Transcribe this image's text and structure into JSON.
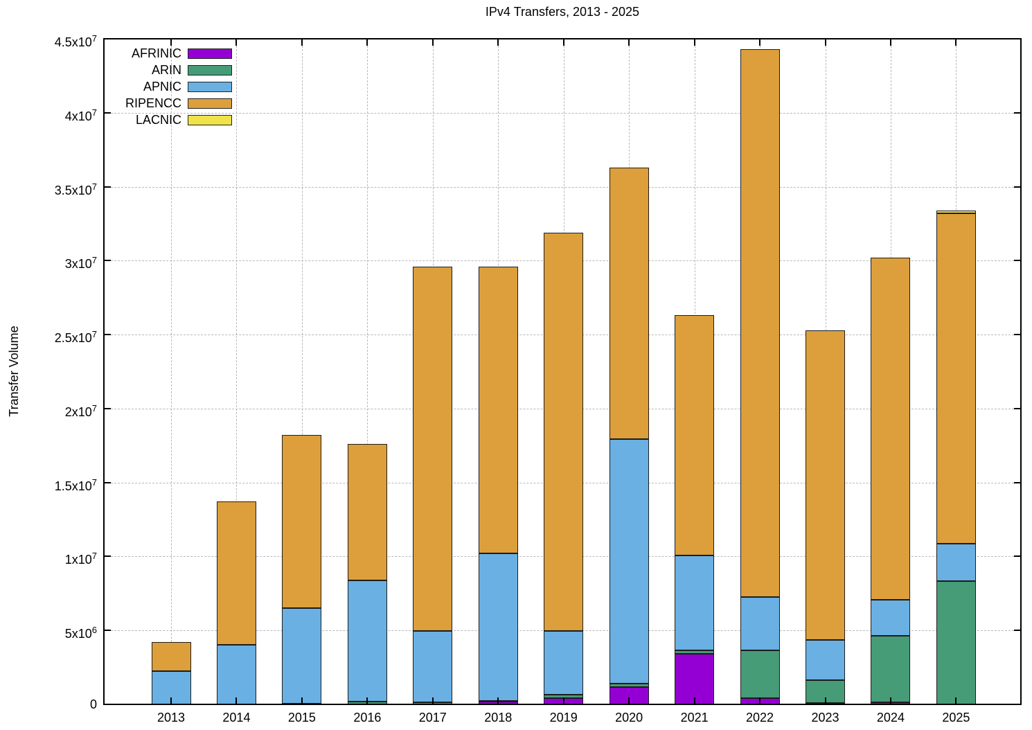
{
  "chart_data": {
    "type": "bar",
    "stacked": true,
    "title": "IPv4 Transfers, 2013 - 2025",
    "xlabel": "",
    "ylabel": "Transfer Volume",
    "ylim": [
      0,
      45000000
    ],
    "ytick_interval": 5000000,
    "grid": "dashed, horizontal and vertical",
    "legend_position": "top-left inside plot",
    "categories": [
      "2013",
      "2014",
      "2015",
      "2016",
      "2017",
      "2018",
      "2019",
      "2020",
      "2021",
      "2022",
      "2023",
      "2024",
      "2025"
    ],
    "series": [
      {
        "name": "AFRINIC",
        "color": "#9400d3",
        "values": [
          0,
          0,
          0,
          0,
          0,
          200000,
          400000,
          1150000,
          3400000,
          400000,
          100000,
          150000,
          0
        ]
      },
      {
        "name": "ARIN",
        "color": "#469c76",
        "values": [
          0,
          0,
          50000,
          200000,
          150000,
          50000,
          250000,
          250000,
          250000,
          3250000,
          1550000,
          4500000,
          8350000
        ]
      },
      {
        "name": "APNIC",
        "color": "#6ab0e3",
        "values": [
          2250000,
          4050000,
          6450000,
          8200000,
          4800000,
          9950000,
          4300000,
          16550000,
          6400000,
          3600000,
          2700000,
          2400000,
          2500000
        ]
      },
      {
        "name": "RIPENCC",
        "color": "#dc9f3c",
        "values": [
          1950000,
          9650000,
          11700000,
          9200000,
          24650000,
          19400000,
          26950000,
          18350000,
          16250000,
          37050000,
          20950000,
          23150000,
          22350000
        ]
      },
      {
        "name": "LACNIC",
        "color": "#efe24a",
        "values": [
          0,
          0,
          0,
          0,
          0,
          0,
          0,
          0,
          0,
          0,
          0,
          0,
          200000
        ]
      }
    ],
    "yticks": [
      {
        "text": "0",
        "sup": ""
      },
      {
        "text": "5x10",
        "sup": "6"
      },
      {
        "text": "1x10",
        "sup": "7"
      },
      {
        "text": "1.5x10",
        "sup": "7"
      },
      {
        "text": "2x10",
        "sup": "7"
      },
      {
        "text": "2.5x10",
        "sup": "7"
      },
      {
        "text": "3x10",
        "sup": "7"
      },
      {
        "text": "3.5x10",
        "sup": "7"
      },
      {
        "text": "4x10",
        "sup": "7"
      },
      {
        "text": "4.5x10",
        "sup": "7"
      }
    ],
    "colors": {
      "axis_border": "#000000",
      "segment_border": "#1c1c1c",
      "gridline": "#b8b8b8",
      "background": "#ffffff"
    }
  }
}
